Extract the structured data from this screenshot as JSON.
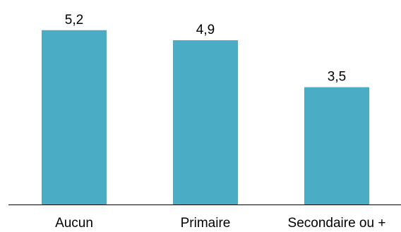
{
  "chart_data": {
    "type": "bar",
    "categories": [
      "Aucun",
      "Primaire",
      "Secondaire ou +"
    ],
    "values": [
      5.2,
      4.9,
      3.5
    ],
    "value_labels": [
      "5,2",
      "4,9",
      "3,5"
    ],
    "ylim": [
      0,
      6.1
    ],
    "grid": false,
    "legend": "none",
    "bar_color": "#4BACC6",
    "axis_color": "#000000"
  }
}
